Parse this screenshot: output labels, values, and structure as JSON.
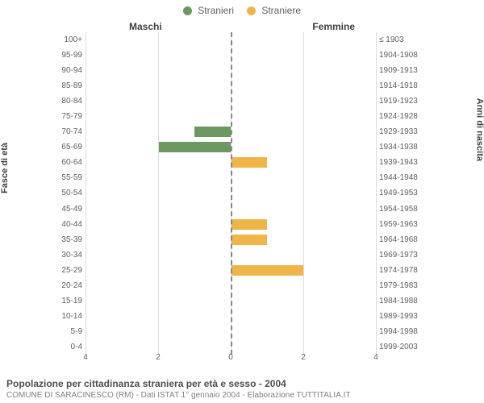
{
  "legend": {
    "male_label": "Stranieri",
    "female_label": "Straniere"
  },
  "colors": {
    "male": "#6c9961",
    "female": "#f0b548",
    "grid": "#dddddd",
    "center": "#888888",
    "text": "#606060",
    "bg": "#ffffff"
  },
  "column_titles": {
    "left": "Maschi",
    "right": "Femmine"
  },
  "axis_titles": {
    "left": "Fasce di età",
    "right": "Anni di nascita"
  },
  "x": {
    "max": 4,
    "ticks": [
      4,
      2,
      0,
      2,
      4
    ]
  },
  "fonts": {
    "legend_size": 12,
    "tick_size": 10,
    "caption_title_size": 12,
    "caption_sub_size": 10
  },
  "rows": [
    {
      "age": "100+",
      "birth": "≤ 1903",
      "m": 0,
      "f": 0
    },
    {
      "age": "95-99",
      "birth": "1904-1908",
      "m": 0,
      "f": 0
    },
    {
      "age": "90-94",
      "birth": "1909-1913",
      "m": 0,
      "f": 0
    },
    {
      "age": "85-89",
      "birth": "1914-1918",
      "m": 0,
      "f": 0
    },
    {
      "age": "80-84",
      "birth": "1919-1923",
      "m": 0,
      "f": 0
    },
    {
      "age": "75-79",
      "birth": "1924-1928",
      "m": 0,
      "f": 0
    },
    {
      "age": "70-74",
      "birth": "1929-1933",
      "m": 1,
      "f": 0
    },
    {
      "age": "65-69",
      "birth": "1934-1938",
      "m": 2,
      "f": 0
    },
    {
      "age": "60-64",
      "birth": "1939-1943",
      "m": 0,
      "f": 1
    },
    {
      "age": "55-59",
      "birth": "1944-1948",
      "m": 0,
      "f": 0
    },
    {
      "age": "50-54",
      "birth": "1949-1953",
      "m": 0,
      "f": 0
    },
    {
      "age": "45-49",
      "birth": "1954-1958",
      "m": 0,
      "f": 0
    },
    {
      "age": "40-44",
      "birth": "1959-1963",
      "m": 0,
      "f": 1
    },
    {
      "age": "35-39",
      "birth": "1964-1968",
      "m": 0,
      "f": 1
    },
    {
      "age": "30-34",
      "birth": "1969-1973",
      "m": 0,
      "f": 0
    },
    {
      "age": "25-29",
      "birth": "1974-1978",
      "m": 0,
      "f": 2
    },
    {
      "age": "20-24",
      "birth": "1979-1983",
      "m": 0,
      "f": 0
    },
    {
      "age": "15-19",
      "birth": "1984-1988",
      "m": 0,
      "f": 0
    },
    {
      "age": "10-14",
      "birth": "1989-1993",
      "m": 0,
      "f": 0
    },
    {
      "age": "5-9",
      "birth": "1994-1998",
      "m": 0,
      "f": 0
    },
    {
      "age": "0-4",
      "birth": "1999-2003",
      "m": 0,
      "f": 0
    }
  ],
  "caption": {
    "title": "Popolazione per cittadinanza straniera per età e sesso - 2004",
    "sub": "COMUNE DI SARACINESCO (RM) - Dati ISTAT 1° gennaio 2004 - Elaborazione TUTTITALIA.IT"
  }
}
